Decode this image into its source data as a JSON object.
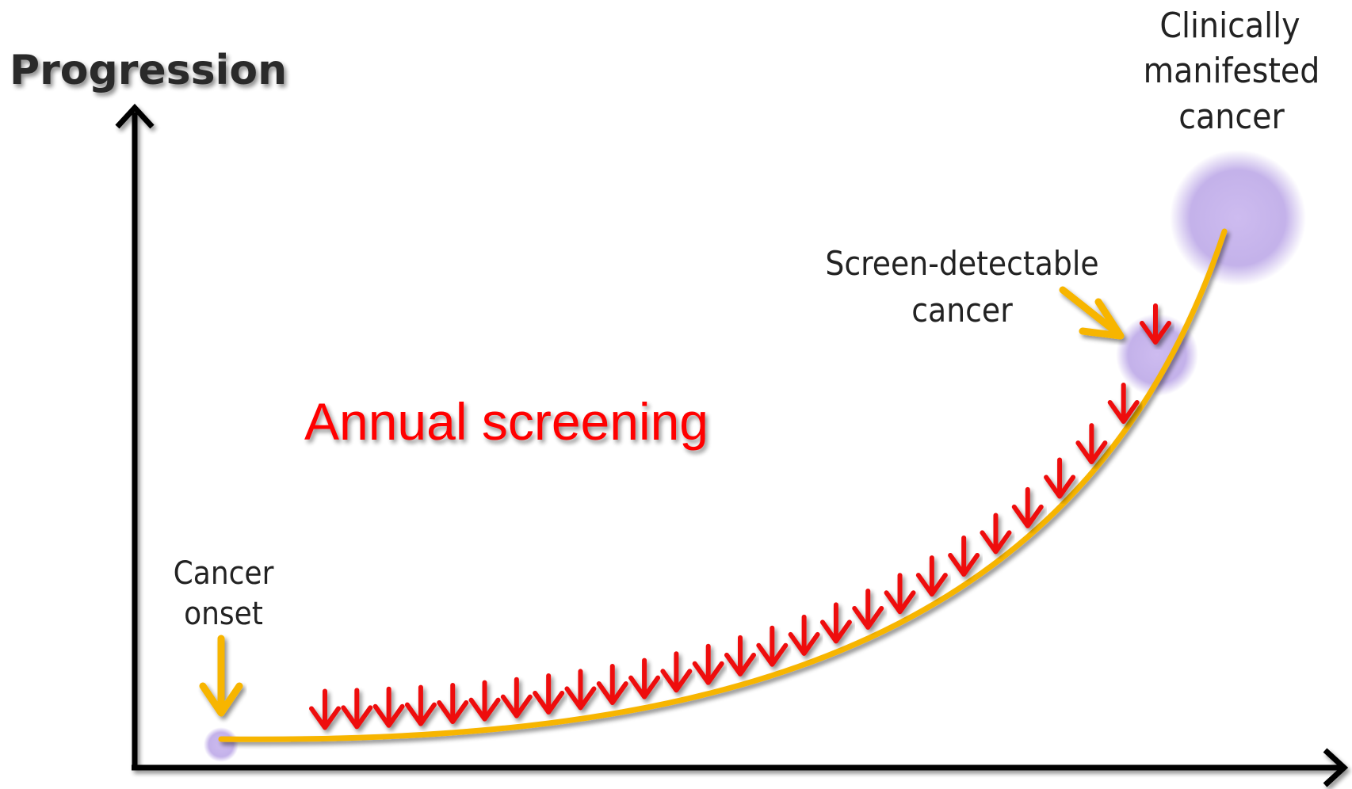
{
  "axis": {
    "y_title": "Progression"
  },
  "labels": {
    "clinical": [
      "Clinically",
      "manifested",
      "cancer"
    ],
    "detectable": [
      "Screen-detectable",
      "cancer"
    ],
    "onset": [
      "Cancer",
      "onset"
    ],
    "screening": "Annual screening"
  },
  "screening": {
    "arrow_count": 27
  },
  "colors": {
    "axis": "#000000",
    "curve": "#f7b500",
    "threshold_line": "#ee1111",
    "screen_arrows": "#ee1111",
    "screen_label": "#ff0000",
    "onset_arrow": "#f7b500",
    "glow": "#b9a4e6"
  }
}
